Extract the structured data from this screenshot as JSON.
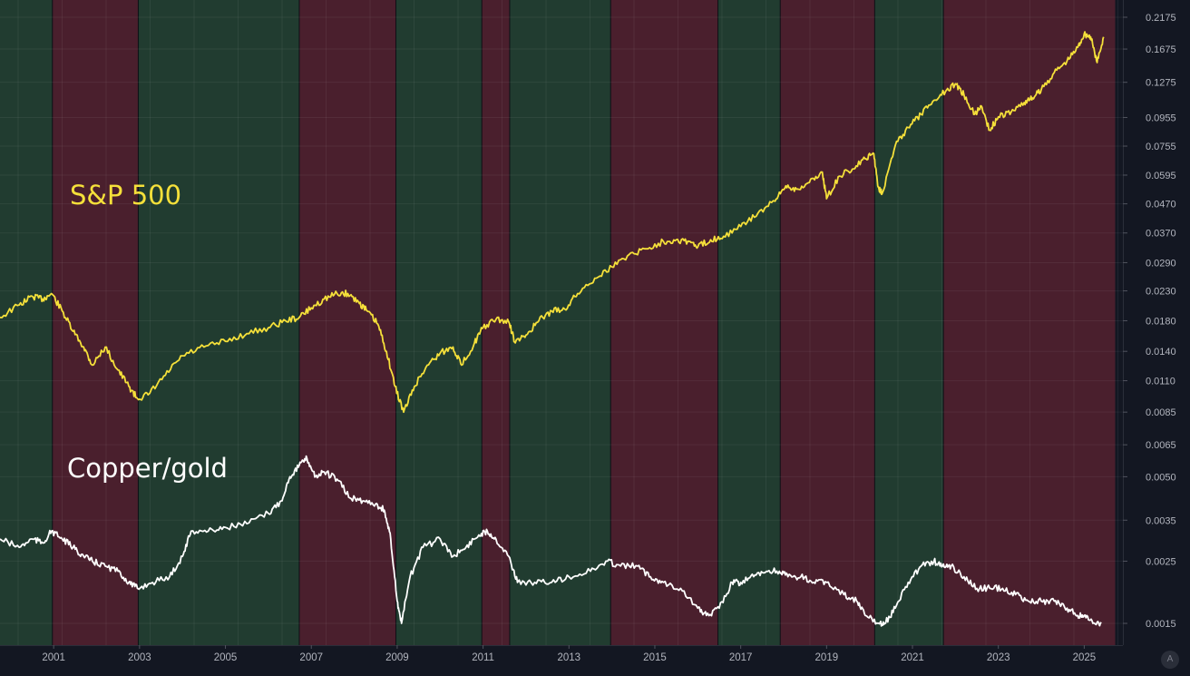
{
  "chart_data": {
    "type": "line",
    "y_scale": "log",
    "ylim": [
      0.0013,
      0.2175
    ],
    "xlim": [
      1999.75,
      2025.9
    ],
    "grid": true,
    "y_ticks": [
      "0.2175",
      "0.1675",
      "0.1275",
      "0.0955",
      "0.0755",
      "0.0595",
      "0.0470",
      "0.0370",
      "0.0290",
      "0.0230",
      "0.0180",
      "0.0140",
      "0.0110",
      "0.0085",
      "0.0065",
      "0.0050",
      "0.0035",
      "0.0025",
      "0.0015"
    ],
    "x_ticks": [
      "2001",
      "2003",
      "2005",
      "2007",
      "2009",
      "2011",
      "2013",
      "2015",
      "2017",
      "2019",
      "2021",
      "2023",
      "2025"
    ],
    "regimes": [
      {
        "start": 1999.75,
        "end": 2000.97,
        "state": "green"
      },
      {
        "start": 2000.97,
        "end": 2002.97,
        "state": "red"
      },
      {
        "start": 2002.97,
        "end": 2006.72,
        "state": "green"
      },
      {
        "start": 2006.72,
        "end": 2008.97,
        "state": "red"
      },
      {
        "start": 2008.97,
        "end": 2010.97,
        "state": "green"
      },
      {
        "start": 2010.97,
        "end": 2011.62,
        "state": "red"
      },
      {
        "start": 2011.62,
        "end": 2013.97,
        "state": "green"
      },
      {
        "start": 2013.97,
        "end": 2016.47,
        "state": "red"
      },
      {
        "start": 2016.47,
        "end": 2017.92,
        "state": "green"
      },
      {
        "start": 2017.92,
        "end": 2020.12,
        "state": "red"
      },
      {
        "start": 2020.12,
        "end": 2021.72,
        "state": "green"
      },
      {
        "start": 2021.72,
        "end": 2025.72,
        "state": "red"
      }
    ],
    "series": [
      {
        "name": "S&P 500",
        "color": "#f5e03a",
        "x": [
          1999.75,
          2000.2,
          2000.5,
          2000.75,
          2000.95,
          2001.2,
          2001.45,
          2001.7,
          2001.9,
          2002.2,
          2002.5,
          2002.75,
          2002.95,
          2003.2,
          2003.6,
          2004.0,
          2004.5,
          2005.0,
          2005.5,
          2006.0,
          2006.4,
          2006.72,
          2007.0,
          2007.3,
          2007.6,
          2007.85,
          2008.1,
          2008.3,
          2008.55,
          2008.75,
          2008.95,
          2009.15,
          2009.4,
          2009.7,
          2010.0,
          2010.3,
          2010.5,
          2010.8,
          2011.0,
          2011.3,
          2011.6,
          2011.75,
          2012.0,
          2012.3,
          2012.6,
          2012.9,
          2013.2,
          2013.6,
          2014.0,
          2014.4,
          2014.8,
          2015.2,
          2015.5,
          2015.8,
          2016.0,
          2016.3,
          2016.6,
          2017.0,
          2017.4,
          2017.8,
          2018.05,
          2018.3,
          2018.6,
          2018.9,
          2019.0,
          2019.3,
          2019.6,
          2019.9,
          2020.1,
          2020.2,
          2020.3,
          2020.6,
          2020.9,
          2021.2,
          2021.5,
          2021.8,
          2022.0,
          2022.2,
          2022.45,
          2022.6,
          2022.8,
          2023.0,
          2023.3,
          2023.6,
          2023.8,
          2024.0,
          2024.3,
          2024.6,
          2024.85,
          2025.0,
          2025.15,
          2025.3,
          2025.45
        ],
        "y": [
          0.0185,
          0.0205,
          0.022,
          0.0215,
          0.0225,
          0.0195,
          0.0165,
          0.0145,
          0.0125,
          0.0145,
          0.012,
          0.0105,
          0.0095,
          0.0098,
          0.0115,
          0.0135,
          0.0145,
          0.0152,
          0.0162,
          0.017,
          0.018,
          0.0185,
          0.02,
          0.0215,
          0.0225,
          0.0225,
          0.021,
          0.0195,
          0.0175,
          0.014,
          0.0105,
          0.0085,
          0.0105,
          0.0125,
          0.0138,
          0.0145,
          0.0125,
          0.015,
          0.017,
          0.0182,
          0.0178,
          0.015,
          0.016,
          0.018,
          0.0195,
          0.0198,
          0.0225,
          0.0255,
          0.028,
          0.031,
          0.0325,
          0.0345,
          0.035,
          0.0345,
          0.033,
          0.035,
          0.036,
          0.039,
          0.0435,
          0.048,
          0.0545,
          0.053,
          0.056,
          0.061,
          0.049,
          0.059,
          0.0625,
          0.068,
          0.071,
          0.054,
          0.0515,
          0.076,
          0.088,
          0.098,
          0.11,
          0.12,
          0.126,
          0.115,
          0.098,
          0.105,
          0.086,
          0.096,
          0.1,
          0.108,
          0.112,
          0.12,
          0.138,
          0.152,
          0.17,
          0.19,
          0.185,
          0.15,
          0.185
        ]
      },
      {
        "name": "Copper/gold",
        "color": "#ffffff",
        "x": [
          1999.75,
          2000.2,
          2000.5,
          2000.75,
          2000.95,
          2001.2,
          2001.45,
          2001.7,
          2001.9,
          2002.2,
          2002.5,
          2002.75,
          2002.95,
          2003.3,
          2003.7,
          2004.0,
          2004.2,
          2004.6,
          2005.0,
          2005.5,
          2006.0,
          2006.3,
          2006.5,
          2006.72,
          2006.9,
          2007.1,
          2007.3,
          2007.6,
          2007.9,
          2008.2,
          2008.5,
          2008.7,
          2008.85,
          2009.0,
          2009.1,
          2009.3,
          2009.6,
          2010.0,
          2010.3,
          2010.6,
          2010.9,
          2011.1,
          2011.3,
          2011.6,
          2011.8,
          2012.2,
          2012.6,
          2013.0,
          2013.5,
          2013.9,
          2014.2,
          2014.6,
          2014.9,
          2015.2,
          2015.6,
          2016.0,
          2016.2,
          2016.5,
          2016.8,
          2017.0,
          2017.3,
          2017.6,
          2017.9,
          2018.1,
          2018.4,
          2018.7,
          2019.0,
          2019.4,
          2019.7,
          2019.9,
          2020.2,
          2020.35,
          2020.6,
          2020.9,
          2021.2,
          2021.5,
          2021.7,
          2021.9,
          2022.2,
          2022.5,
          2022.8,
          2023.1,
          2023.4,
          2023.7,
          2024.0,
          2024.3,
          2024.6,
          2024.85,
          2025.0,
          2025.2,
          2025.4
        ],
        "y": [
          0.003,
          0.0028,
          0.003,
          0.0029,
          0.0032,
          0.003,
          0.0028,
          0.0026,
          0.0025,
          0.0024,
          0.0023,
          0.0021,
          0.002,
          0.0021,
          0.0022,
          0.0026,
          0.0032,
          0.0032,
          0.0033,
          0.0034,
          0.0037,
          0.0041,
          0.005,
          0.0055,
          0.0058,
          0.005,
          0.0052,
          0.0049,
          0.0042,
          0.0041,
          0.004,
          0.0038,
          0.003,
          0.0018,
          0.0015,
          0.0022,
          0.0028,
          0.003,
          0.0026,
          0.0028,
          0.0031,
          0.0032,
          0.003,
          0.0026,
          0.0021,
          0.0021,
          0.0021,
          0.0022,
          0.0023,
          0.0025,
          0.0024,
          0.0024,
          0.0022,
          0.0021,
          0.002,
          0.0017,
          0.0016,
          0.0017,
          0.0021,
          0.0021,
          0.0022,
          0.0023,
          0.0023,
          0.0022,
          0.0022,
          0.0021,
          0.0021,
          0.0019,
          0.0018,
          0.0016,
          0.0015,
          0.0015,
          0.0017,
          0.0021,
          0.0024,
          0.0025,
          0.0024,
          0.0024,
          0.0022,
          0.002,
          0.002,
          0.002,
          0.0019,
          0.0018,
          0.0018,
          0.0018,
          0.0017,
          0.0016,
          0.0016,
          0.0015,
          0.0015
        ]
      }
    ]
  },
  "colors": {
    "background": "#131722",
    "green_regime": "#213c30",
    "red_regime": "#4a1f2d",
    "divider": "#0e1016",
    "grid": "rgba(255,255,255,0.06)",
    "axis_text": "#b2b5be"
  },
  "ui": {
    "auto_scale_label": "A"
  }
}
